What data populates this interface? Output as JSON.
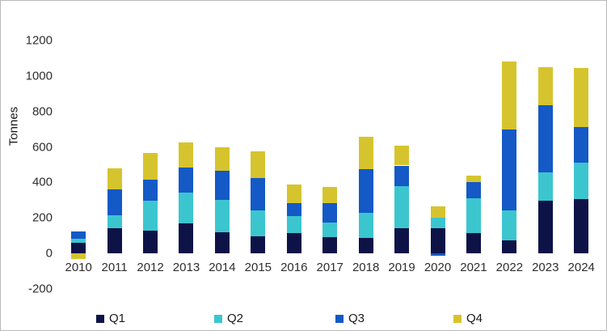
{
  "chart_data": {
    "type": "bar",
    "stacked": true,
    "title": "",
    "xlabel": "",
    "ylabel": "Tonnes",
    "categories": [
      "2010",
      "2011",
      "2012",
      "2013",
      "2014",
      "2015",
      "2016",
      "2017",
      "2018",
      "2019",
      "2020",
      "2021",
      "2022",
      "2023",
      "2024"
    ],
    "series": [
      {
        "name": "Q1",
        "color": "#0d1347",
        "values": [
          60,
          140,
          130,
          170,
          120,
          95,
          115,
          90,
          85,
          140,
          140,
          115,
          75,
          295,
          305
        ]
      },
      {
        "name": "Q2",
        "color": "#3bc6cf",
        "values": [
          20,
          75,
          165,
          170,
          180,
          145,
          95,
          85,
          145,
          240,
          60,
          195,
          165,
          160,
          205
        ]
      },
      {
        "name": "Q3",
        "color": "#1459c6",
        "values": [
          45,
          145,
          120,
          145,
          165,
          185,
          75,
          110,
          245,
          115,
          -15,
          90,
          460,
          380,
          200
        ]
      },
      {
        "name": "Q4",
        "color": "#d6c42e",
        "values": [
          -30,
          120,
          150,
          140,
          135,
          150,
          105,
          90,
          180,
          110,
          65,
          40,
          380,
          215,
          335
        ]
      }
    ],
    "totals_positive": [
      125,
      480,
      565,
      625,
      600,
      575,
      390,
      375,
      655,
      605,
      265,
      440,
      1080,
      1050,
      1045
    ],
    "ylim": [
      -200,
      1200
    ],
    "yticks": [
      -200,
      0,
      200,
      400,
      600,
      800,
      1000,
      1200
    ],
    "grid": false,
    "legend_position": "bottom",
    "legend_labels": [
      "Q1",
      "Q2",
      "Q3",
      "Q4"
    ]
  }
}
